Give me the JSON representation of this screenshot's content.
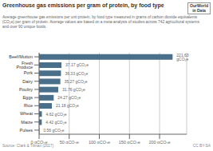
{
  "chart_data": {
    "type": "bar",
    "orientation": "horizontal",
    "title": "Greenhouse gas emissions per gram of protein, by food type",
    "subtitle": [
      "Average greenhouse gas emissions per unit protein, by food type measured in grams of carbon dioxide equivalents",
      "(CO₂e) per gram of protein. Average values are based on a meta-analysis of studies across 742 agricultural systems",
      "and over 90 unique foods."
    ],
    "annotations": [
      "Source: Clark & Tilman (2017)",
      "CC BY-SA",
      "OurWorld",
      "in Data"
    ],
    "categories": [
      "Beef/Mutton",
      "Fresh Produce",
      "Pork",
      "Dairy",
      "Poultry",
      "Eggs",
      "Rice",
      "Wheat",
      "Maize",
      "Pulses"
    ],
    "values": [
      221.63,
      37.17,
      36.33,
      35.27,
      31.76,
      24.27,
      21.18,
      4.62,
      4.42,
      0.56
    ],
    "value_labels": [
      "221.63 gCO₂e",
      "37.17 gCO₂e",
      "36.33 gCO₂e",
      "35.27 gCO₂e",
      "31.76 gCO₂e",
      "24.27 gCO₂e",
      "21.18 gCO₂e",
      "4.62 gCO₂e",
      "4.42 gCO₂e",
      "0.56 gCO₂e"
    ],
    "data_labels": true,
    "color": "#4a6f8a",
    "xlim": [
      0,
      245
    ],
    "xticks": [
      {
        "value": 0,
        "label": "0 gCO₂e"
      },
      {
        "value": 50,
        "label": "50 gCO₂e"
      },
      {
        "value": 100,
        "label": "100 gCO₂e"
      },
      {
        "value": 150,
        "label": "150 gCO₂e"
      },
      {
        "value": 200,
        "label": "200 gCO₂e"
      }
    ],
    "grid": true
  }
}
